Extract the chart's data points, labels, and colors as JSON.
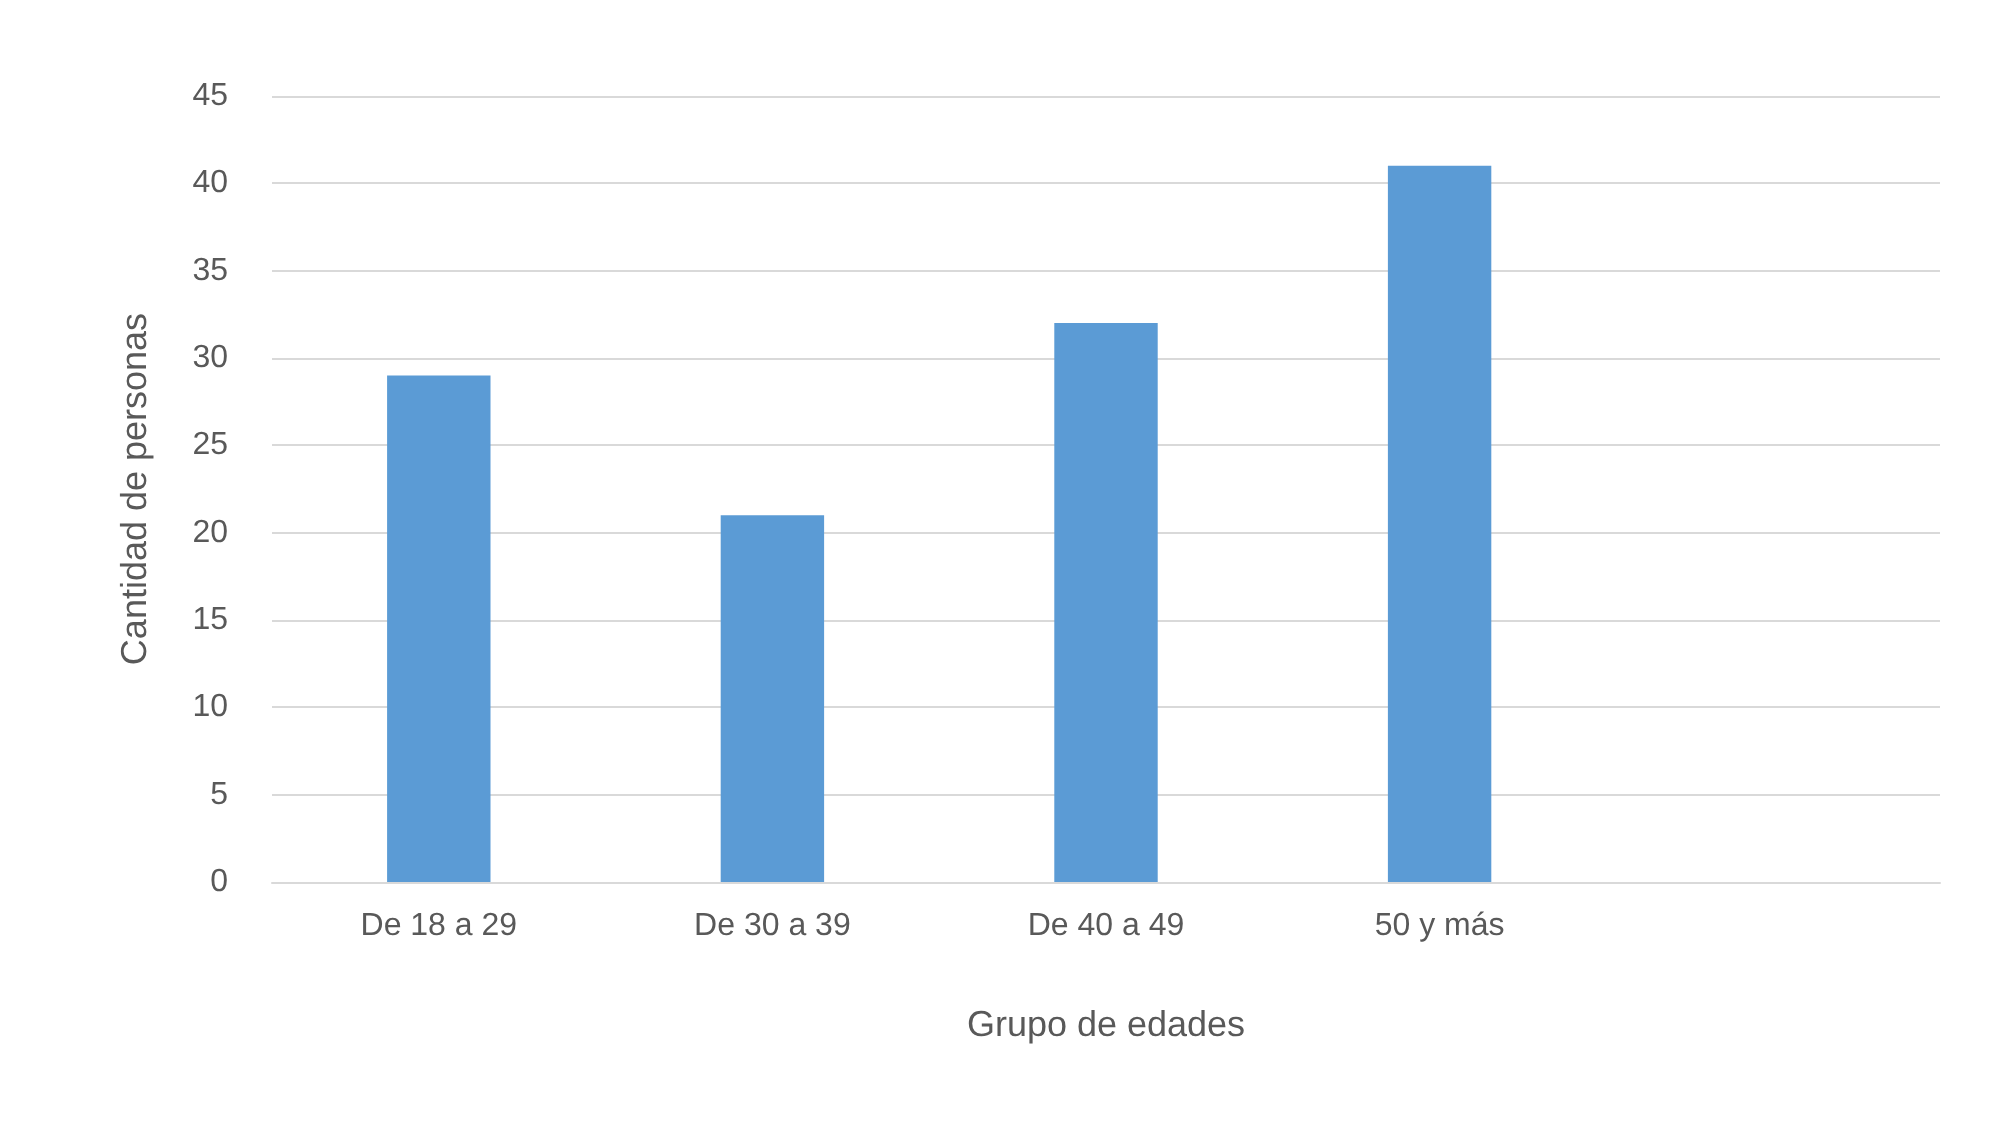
{
  "chart_data": {
    "type": "bar",
    "xlabel": "Grupo de edades",
    "ylabel": "Cantidad de personas",
    "categories": [
      "De 18 a 29",
      "De 30 a 39",
      "De 40 a 49",
      "50 y más",
      null
    ],
    "values": [
      29,
      21,
      32,
      41,
      null
    ],
    "color": "#5b9bd5",
    "ylim": [
      0,
      45
    ],
    "yticks": [
      0,
      5,
      10,
      15,
      20,
      25,
      30,
      35,
      40,
      45
    ],
    "grid": "y"
  }
}
